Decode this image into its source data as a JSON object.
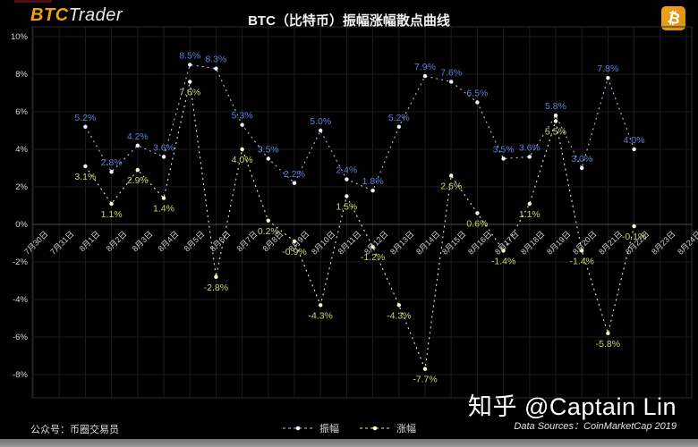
{
  "header": {
    "logo": {
      "prefix": "BTC",
      "suffix": "Trader"
    },
    "btc_badge_symbol": "₿"
  },
  "chart_data": {
    "type": "scatter",
    "title": "BTC（比特币）振幅涨幅散点曲线",
    "x_labels": [
      "7月30日",
      "7月31日",
      "8月1日",
      "8月2日",
      "8月3日",
      "8月4日",
      "8月5日",
      "8月6日",
      "8月7日",
      "8月8日",
      "8月9日",
      "8月10日",
      "8月11日",
      "8月12日",
      "8月13日",
      "8月14日",
      "8月15日",
      "8月16日",
      "8月17日",
      "8月18日",
      "8月19日",
      "8月20日",
      "8月21日",
      "8月22日",
      "8月23日",
      "8月24日"
    ],
    "y_tick_labels": [
      "10%",
      "8%",
      "6%",
      "4%",
      "2%",
      "0%",
      "-2%",
      "-4%",
      "-6%",
      "-8%"
    ],
    "y_tick_values": [
      10,
      8,
      6,
      4,
      2,
      0,
      -2,
      -4,
      -6,
      -8
    ],
    "ylim": [
      -9,
      10.5
    ],
    "grid": true,
    "legend_position": "bottom-center",
    "series": [
      {
        "key": "amplitude",
        "name": "振幅",
        "start_index": 2,
        "values": [
          5.2,
          2.8,
          4.2,
          3.6,
          8.5,
          8.3,
          5.3,
          3.5,
          2.2,
          5.0,
          2.4,
          1.8,
          5.2,
          7.9,
          7.6,
          6.5,
          3.5,
          3.6,
          5.8,
          3.0,
          7.8,
          4.0
        ],
        "labels": [
          "5.2%",
          "2.8%",
          "4.2%",
          "3.6%",
          "8.5%",
          "8.3%",
          "5.3%",
          "3.5%",
          "2.2%",
          "5.0%",
          "2.4%",
          "1.8%",
          "5.2%",
          "7.9%",
          "7.6%",
          "6.5%",
          "3.5%",
          "3.6%",
          "5.8%",
          "3.0%",
          "7.8%",
          "4.0%"
        ],
        "line_color": "#a9bedf",
        "marker_color": "#eef3fc",
        "label_color": "#5b7fd6",
        "label_position": "above"
      },
      {
        "key": "change",
        "name": "涨幅",
        "start_index": 2,
        "values": [
          3.1,
          1.1,
          2.9,
          1.4,
          7.6,
          -2.8,
          4.0,
          0.2,
          -0.9,
          -4.3,
          1.5,
          -1.2,
          -4.3,
          -7.7,
          2.6,
          0.6,
          -1.4,
          1.1,
          5.5,
          -1.4,
          -5.8,
          -0.1
        ],
        "labels": [
          "3.1%",
          "1.1%",
          "2.9%",
          "1.4%",
          "7.6%",
          "-2.8%",
          "4.0%",
          "0.2%",
          "-0.9%",
          "-4.3%",
          "1.5%",
          "-1.2%",
          "-4.3%",
          "-7.7%",
          "2.6%",
          "0.6%",
          "-1.4%",
          "1.1%",
          "5.5%",
          "-1.4%",
          "-5.8%",
          "-0.1%"
        ],
        "line_color": "#e3e9c0",
        "marker_color": "#fbf9cf",
        "label_color": "#c2d86c",
        "label_position": "below"
      }
    ]
  },
  "footer": {
    "wechat_note": "公众号：币圈交易员",
    "watermark": "知乎 @Captain Lin",
    "data_source": "Data Sources：CoinMarketCap 2019"
  },
  "colors": {
    "background": "#000000",
    "gold": "#f0a10c",
    "grid": "#1c1c1c",
    "zero_line": "#4a4a4a",
    "plot_border": "#2d2d2d",
    "axis_text": "#d6d6d6",
    "title_text": "#f2f2f2"
  }
}
